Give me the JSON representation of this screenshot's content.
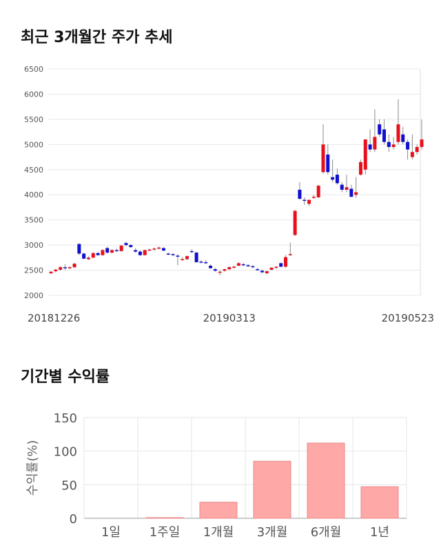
{
  "section1": {
    "title": "최근 3개월간 주가 추세"
  },
  "section2": {
    "title": "기간별 수익률"
  },
  "colors": {
    "up": "#e8101c",
    "down": "#1010d0",
    "bar": "#ffa8a8",
    "bar_stroke": "#e88a8a",
    "grid": "#e8e8e8"
  },
  "chart_data": [
    {
      "type": "candlestick",
      "y_ticks": [
        "6500",
        "6000",
        "5500",
        "5000",
        "4500",
        "4000",
        "3500",
        "3000",
        "2500",
        "2000"
      ],
      "ylim": [
        2000,
        6500
      ],
      "x_tick_labels": [
        {
          "label": "20181226",
          "index": 0
        },
        {
          "label": "20190313",
          "index": 38
        },
        {
          "label": "20190523",
          "index": 75
        }
      ],
      "candles": [
        [
          2440,
          2480,
          2420,
          2470
        ],
        [
          2480,
          2530,
          2460,
          2510
        ],
        [
          2510,
          2580,
          2490,
          2560
        ],
        [
          2560,
          2620,
          2500,
          2540
        ],
        [
          2540,
          2580,
          2520,
          2560
        ],
        [
          2560,
          2650,
          2540,
          2630
        ],
        [
          3020,
          3040,
          2800,
          2830
        ],
        [
          2830,
          2850,
          2720,
          2730
        ],
        [
          2720,
          2780,
          2700,
          2750
        ],
        [
          2750,
          2860,
          2740,
          2840
        ],
        [
          2840,
          2870,
          2790,
          2800
        ],
        [
          2800,
          2920,
          2780,
          2900
        ],
        [
          2940,
          2970,
          2830,
          2850
        ],
        [
          2850,
          2920,
          2830,
          2900
        ],
        [
          2900,
          2930,
          2860,
          2880
        ],
        [
          2880,
          3000,
          2870,
          2990
        ],
        [
          3040,
          3070,
          2980,
          3000
        ],
        [
          3000,
          3020,
          2940,
          2960
        ],
        [
          2900,
          2940,
          2850,
          2870
        ],
        [
          2870,
          2900,
          2780,
          2800
        ],
        [
          2800,
          2910,
          2790,
          2900
        ],
        [
          2900,
          2930,
          2880,
          2910
        ],
        [
          2910,
          2950,
          2890,
          2930
        ],
        [
          2930,
          2970,
          2910,
          2950
        ],
        [
          2940,
          2960,
          2880,
          2890
        ],
        [
          2830,
          2850,
          2800,
          2820
        ],
        [
          2820,
          2840,
          2780,
          2800
        ],
        [
          2790,
          2820,
          2600,
          2780
        ],
        [
          2720,
          2760,
          2690,
          2720
        ],
        [
          2720,
          2790,
          2700,
          2780
        ],
        [
          2880,
          2920,
          2840,
          2860
        ],
        [
          2850,
          2870,
          2650,
          2660
        ],
        [
          2670,
          2700,
          2640,
          2660
        ],
        [
          2660,
          2700,
          2620,
          2650
        ],
        [
          2590,
          2620,
          2530,
          2540
        ],
        [
          2520,
          2550,
          2470,
          2490
        ],
        [
          2450,
          2500,
          2400,
          2470
        ],
        [
          2490,
          2530,
          2470,
          2520
        ],
        [
          2520,
          2580,
          2500,
          2560
        ],
        [
          2560,
          2590,
          2530,
          2570
        ],
        [
          2590,
          2660,
          2580,
          2640
        ],
        [
          2620,
          2640,
          2580,
          2600
        ],
        [
          2600,
          2620,
          2560,
          2590
        ],
        [
          2580,
          2600,
          2540,
          2570
        ],
        [
          2520,
          2550,
          2490,
          2510
        ],
        [
          2490,
          2510,
          2440,
          2460
        ],
        [
          2440,
          2490,
          2420,
          2480
        ],
        [
          2510,
          2560,
          2500,
          2550
        ],
        [
          2550,
          2580,
          2520,
          2570
        ],
        [
          2640,
          2650,
          2560,
          2570
        ],
        [
          2570,
          2800,
          2550,
          2760
        ],
        [
          2800,
          3050,
          2780,
          2820
        ],
        [
          3200,
          3700,
          3180,
          3680
        ],
        [
          4100,
          4250,
          3900,
          3920
        ],
        [
          3900,
          3950,
          3800,
          3880
        ],
        [
          3820,
          3900,
          3780,
          3900
        ],
        [
          3950,
          4000,
          3920,
          3960
        ],
        [
          3950,
          4200,
          3930,
          4180
        ],
        [
          4450,
          5400,
          4420,
          5000
        ],
        [
          4800,
          5000,
          4400,
          4450
        ],
        [
          4350,
          4700,
          4250,
          4300
        ],
        [
          4400,
          4520,
          4200,
          4230
        ],
        [
          4200,
          4250,
          4050,
          4100
        ],
        [
          4100,
          4400,
          4050,
          4150
        ],
        [
          4120,
          4200,
          3950,
          3960
        ],
        [
          4000,
          4350,
          3940,
          4050
        ],
        [
          4400,
          4700,
          4380,
          4650
        ],
        [
          4500,
          5100,
          4400,
          5100
        ],
        [
          5000,
          5300,
          4850,
          4900
        ],
        [
          4900,
          5700,
          4850,
          5150
        ],
        [
          5400,
          5500,
          5150,
          5200
        ],
        [
          5300,
          5500,
          5000,
          5050
        ],
        [
          5050,
          5200,
          4850,
          4950
        ],
        [
          4950,
          5150,
          4900,
          5000
        ],
        [
          5050,
          5900,
          5000,
          5400
        ],
        [
          5200,
          5350,
          5000,
          5050
        ],
        [
          5050,
          5100,
          4700,
          4900
        ],
        [
          4750,
          5200,
          4700,
          4850
        ],
        [
          4850,
          5000,
          4800,
          4950
        ],
        [
          4950,
          5500,
          4900,
          5100
        ]
      ]
    },
    {
      "type": "bar",
      "ylabel": "수익률(%)",
      "y_ticks": [
        "150",
        "100",
        "50",
        "0"
      ],
      "ylim": [
        0,
        150
      ],
      "categories": [
        "1일",
        "1주일",
        "1개월",
        "3개월",
        "6개월",
        "1년"
      ],
      "values": [
        0,
        1,
        24,
        85,
        112,
        47
      ]
    }
  ]
}
